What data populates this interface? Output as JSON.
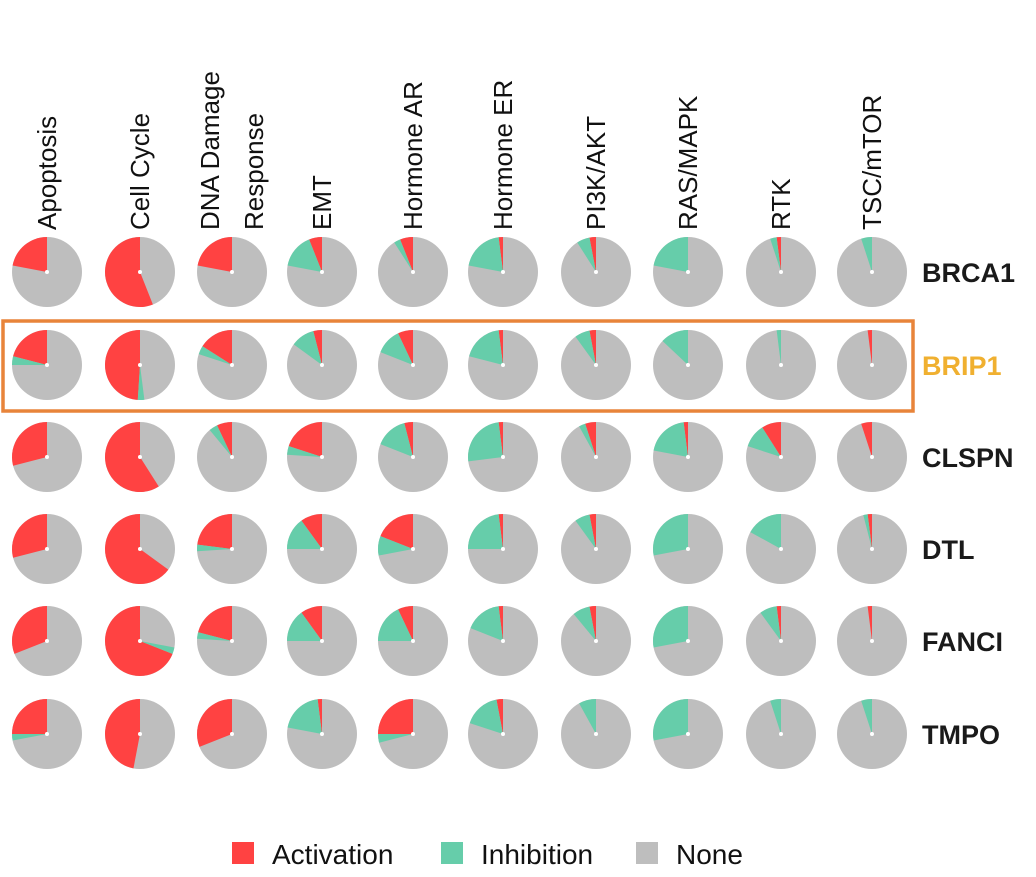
{
  "chart_data": {
    "type": "pie",
    "layout": "grid of pie charts (genes x pathways)",
    "pathways": [
      [
        "Apoptosis"
      ],
      [
        "Cell Cycle"
      ],
      [
        "DNA Damage",
        "Response"
      ],
      [
        "EMT"
      ],
      [
        "Hormone AR"
      ],
      [
        "Hormone ER"
      ],
      [
        "PI3K/AKT"
      ],
      [
        "RAS/MAPK"
      ],
      [
        "RTK"
      ],
      [
        "TSC/mTOR"
      ]
    ],
    "genes": [
      "BRCA1",
      "BRIP1",
      "CLSPN",
      "DTL",
      "FANCI",
      "TMPO"
    ],
    "highlighted_gene": "BRIP1",
    "series": [
      {
        "name": "Activation",
        "color": "#FF4242",
        "values": [
          [
            0.22,
            0.56,
            0.22,
            0.06,
            0.06,
            0.02,
            0.03,
            0.0,
            0.02,
            0.0
          ],
          [
            0.21,
            0.49,
            0.16,
            0.04,
            0.07,
            0.02,
            0.03,
            0.0,
            0.0,
            0.02
          ],
          [
            0.29,
            0.59,
            0.07,
            0.2,
            0.04,
            0.02,
            0.05,
            0.02,
            0.09,
            0.05
          ],
          [
            0.29,
            0.65,
            0.23,
            0.1,
            0.19,
            0.02,
            0.03,
            0.0,
            0.0,
            0.02
          ],
          [
            0.31,
            0.69,
            0.21,
            0.1,
            0.07,
            0.02,
            0.03,
            0.0,
            0.02,
            0.02
          ],
          [
            0.25,
            0.47,
            0.31,
            0.02,
            0.25,
            0.03,
            0.0,
            0.0,
            0.0,
            0.0
          ]
        ]
      },
      {
        "name": "Inhibition",
        "color": "#66CDAA",
        "values": [
          [
            0.0,
            0.0,
            0.0,
            0.16,
            0.03,
            0.2,
            0.06,
            0.22,
            0.03,
            0.05
          ],
          [
            0.04,
            0.03,
            0.04,
            0.11,
            0.12,
            0.19,
            0.07,
            0.13,
            0.02,
            0.0
          ],
          [
            0.0,
            0.0,
            0.04,
            0.04,
            0.15,
            0.25,
            0.03,
            0.2,
            0.11,
            0.0
          ],
          [
            0.0,
            0.0,
            0.03,
            0.15,
            0.09,
            0.23,
            0.07,
            0.28,
            0.17,
            0.02
          ],
          [
            0.0,
            0.03,
            0.03,
            0.15,
            0.18,
            0.17,
            0.08,
            0.28,
            0.08,
            0.0
          ],
          [
            0.03,
            0.0,
            0.0,
            0.2,
            0.04,
            0.17,
            0.08,
            0.28,
            0.05,
            0.05
          ]
        ]
      },
      {
        "name": "None",
        "color": "#BEBEBE",
        "values": "remainder"
      }
    ],
    "highlight_color": "#E8843A",
    "legend": {
      "placement": "bottom-center",
      "entries": [
        "Activation",
        "Inhibition",
        "None"
      ]
    }
  }
}
